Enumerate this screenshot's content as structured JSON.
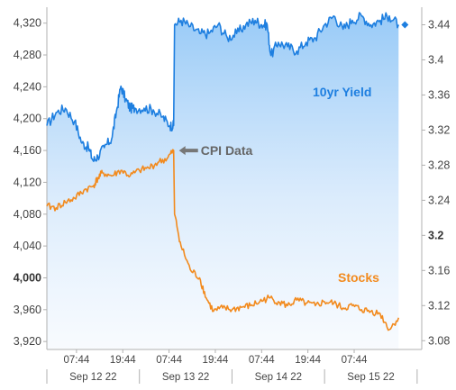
{
  "chart_data": {
    "type": "line",
    "title": "",
    "categories_label": "",
    "x_time_labels": [
      "07:44",
      "19:44",
      "07:44",
      "19:44",
      "07:44",
      "19:44",
      "07:44"
    ],
    "x_date_labels": [
      "Sep 12 22",
      "Sep 13 22",
      "Sep 14 22",
      "Sep 15 22"
    ],
    "left_axis": {
      "ticks": [
        "4,320",
        "4,280",
        "4,240",
        "4,200",
        "4,160",
        "4,120",
        "4,080",
        "4,040",
        "4,000",
        "3,960",
        "3,920"
      ],
      "bold_tick": "4,000",
      "range": [
        3910,
        4340
      ]
    },
    "right_axis": {
      "ticks": [
        "3.44",
        "3.4",
        "3.36",
        "3.32",
        "3.28",
        "3.24",
        "3.2",
        "3.16",
        "3.12",
        "3.08"
      ],
      "bold_tick": "3.2",
      "range": [
        3.07,
        3.46
      ]
    },
    "x_range_days": [
      0,
      4.05
    ],
    "series": [
      {
        "name": "10yr Yield",
        "axis": "right",
        "color": "#1e7fe0",
        "points": [
          [
            0.0,
            3.325
          ],
          [
            0.1,
            3.34
          ],
          [
            0.2,
            3.345
          ],
          [
            0.3,
            3.33
          ],
          [
            0.38,
            3.305
          ],
          [
            0.45,
            3.3
          ],
          [
            0.5,
            3.285
          ],
          [
            0.55,
            3.29
          ],
          [
            0.62,
            3.3
          ],
          [
            0.7,
            3.31
          ],
          [
            0.75,
            3.34
          ],
          [
            0.8,
            3.37
          ],
          [
            0.85,
            3.355
          ],
          [
            0.9,
            3.345
          ],
          [
            0.95,
            3.345
          ],
          [
            1.05,
            3.345
          ],
          [
            1.15,
            3.343
          ],
          [
            1.25,
            3.335
          ],
          [
            1.33,
            3.325
          ],
          [
            1.37,
            3.325
          ],
          [
            1.38,
            3.44
          ],
          [
            1.45,
            3.445
          ],
          [
            1.55,
            3.438
          ],
          [
            1.65,
            3.43
          ],
          [
            1.75,
            3.43
          ],
          [
            1.85,
            3.44
          ],
          [
            1.95,
            3.425
          ],
          [
            2.05,
            3.43
          ],
          [
            2.15,
            3.44
          ],
          [
            2.25,
            3.445
          ],
          [
            2.32,
            3.44
          ],
          [
            2.38,
            3.44
          ],
          [
            2.42,
            3.405
          ],
          [
            2.5,
            3.42
          ],
          [
            2.6,
            3.415
          ],
          [
            2.7,
            3.41
          ],
          [
            2.8,
            3.42
          ],
          [
            2.9,
            3.425
          ],
          [
            3.0,
            3.44
          ],
          [
            3.1,
            3.45
          ],
          [
            3.2,
            3.435
          ],
          [
            3.3,
            3.445
          ],
          [
            3.4,
            3.45
          ],
          [
            3.5,
            3.44
          ],
          [
            3.6,
            3.445
          ],
          [
            3.7,
            3.45
          ],
          [
            3.8,
            3.44
          ]
        ]
      },
      {
        "name": "Stocks",
        "axis": "left",
        "color": "#f28a1d",
        "points": [
          [
            0.0,
            4090
          ],
          [
            0.1,
            4088
          ],
          [
            0.2,
            4095
          ],
          [
            0.3,
            4100
          ],
          [
            0.4,
            4110
          ],
          [
            0.5,
            4115
          ],
          [
            0.55,
            4125
          ],
          [
            0.6,
            4132
          ],
          [
            0.7,
            4128
          ],
          [
            0.8,
            4135
          ],
          [
            0.9,
            4128
          ],
          [
            1.0,
            4135
          ],
          [
            1.1,
            4138
          ],
          [
            1.2,
            4145
          ],
          [
            1.3,
            4150
          ],
          [
            1.37,
            4160
          ],
          [
            1.38,
            4080
          ],
          [
            1.45,
            4040
          ],
          [
            1.55,
            4010
          ],
          [
            1.65,
            4000
          ],
          [
            1.72,
            3975
          ],
          [
            1.8,
            3958
          ],
          [
            1.9,
            3962
          ],
          [
            2.0,
            3960
          ],
          [
            2.1,
            3963
          ],
          [
            2.2,
            3965
          ],
          [
            2.3,
            3970
          ],
          [
            2.4,
            3975
          ],
          [
            2.5,
            3970
          ],
          [
            2.6,
            3965
          ],
          [
            2.7,
            3972
          ],
          [
            2.8,
            3968
          ],
          [
            2.9,
            3965
          ],
          [
            3.0,
            3970
          ],
          [
            3.1,
            3968
          ],
          [
            3.2,
            3962
          ],
          [
            3.3,
            3965
          ],
          [
            3.4,
            3960
          ],
          [
            3.5,
            3958
          ],
          [
            3.6,
            3955
          ],
          [
            3.7,
            3935
          ],
          [
            3.8,
            3950
          ]
        ]
      }
    ],
    "annotations": [
      {
        "text": "CPI Data",
        "color": "#666666"
      },
      {
        "text": "10yr Yield",
        "color": "#1e7fe0"
      },
      {
        "text": "Stocks",
        "color": "#f28a1d"
      }
    ],
    "grid": false,
    "legend": "none"
  }
}
